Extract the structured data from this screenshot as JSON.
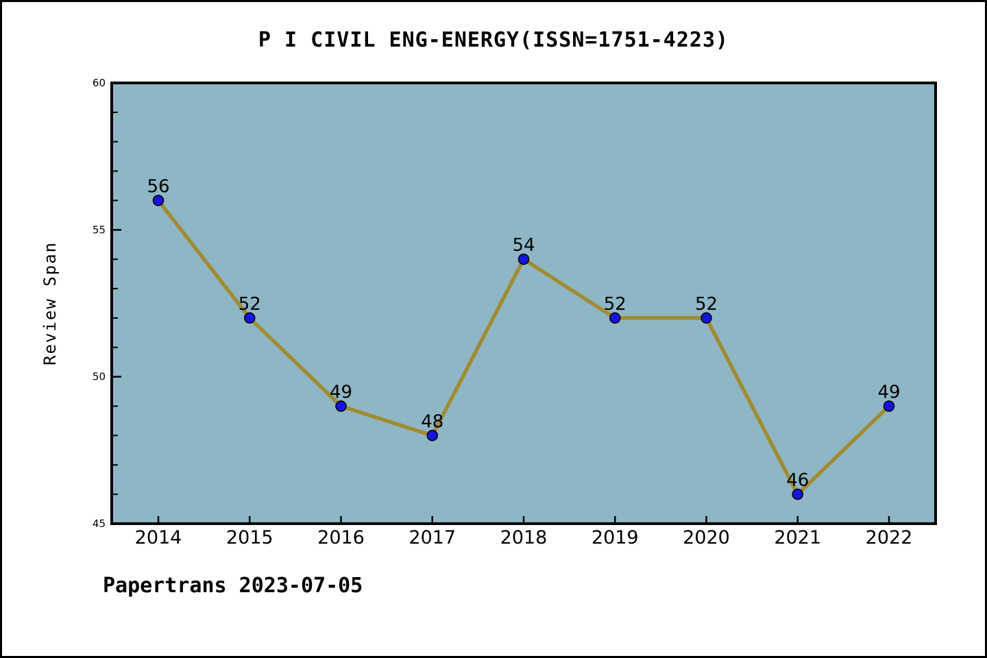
{
  "chart_data": {
    "type": "line",
    "title": "P I CIVIL ENG-ENERGY(ISSN=1751-4223)",
    "x": [
      2014,
      2015,
      2016,
      2017,
      2018,
      2019,
      2020,
      2021,
      2022
    ],
    "series": [
      {
        "name": "Review Span",
        "values": [
          56,
          52,
          49,
          48,
          54,
          52,
          52,
          46,
          49
        ]
      }
    ],
    "point_labels": [
      "56",
      "52",
      "49",
      "48",
      "54",
      "52",
      "52",
      "46",
      "49"
    ],
    "xlabel": "",
    "ylabel": "Review Span",
    "ylim": [
      45,
      60
    ],
    "yticks_major": [
      45,
      50,
      55,
      60
    ],
    "ytick_minor_step": 1,
    "grid": false,
    "legend_position": "none",
    "colors": {
      "plot_bg": "#8fb6c4",
      "page_bg": "#ffffff",
      "frame": "#000000",
      "line": "#9f8c34",
      "marker_fill": "#1515e0",
      "marker_edge": "#000000",
      "text": "#000000"
    }
  },
  "footer": {
    "text": "Papertrans 2023-07-05"
  }
}
